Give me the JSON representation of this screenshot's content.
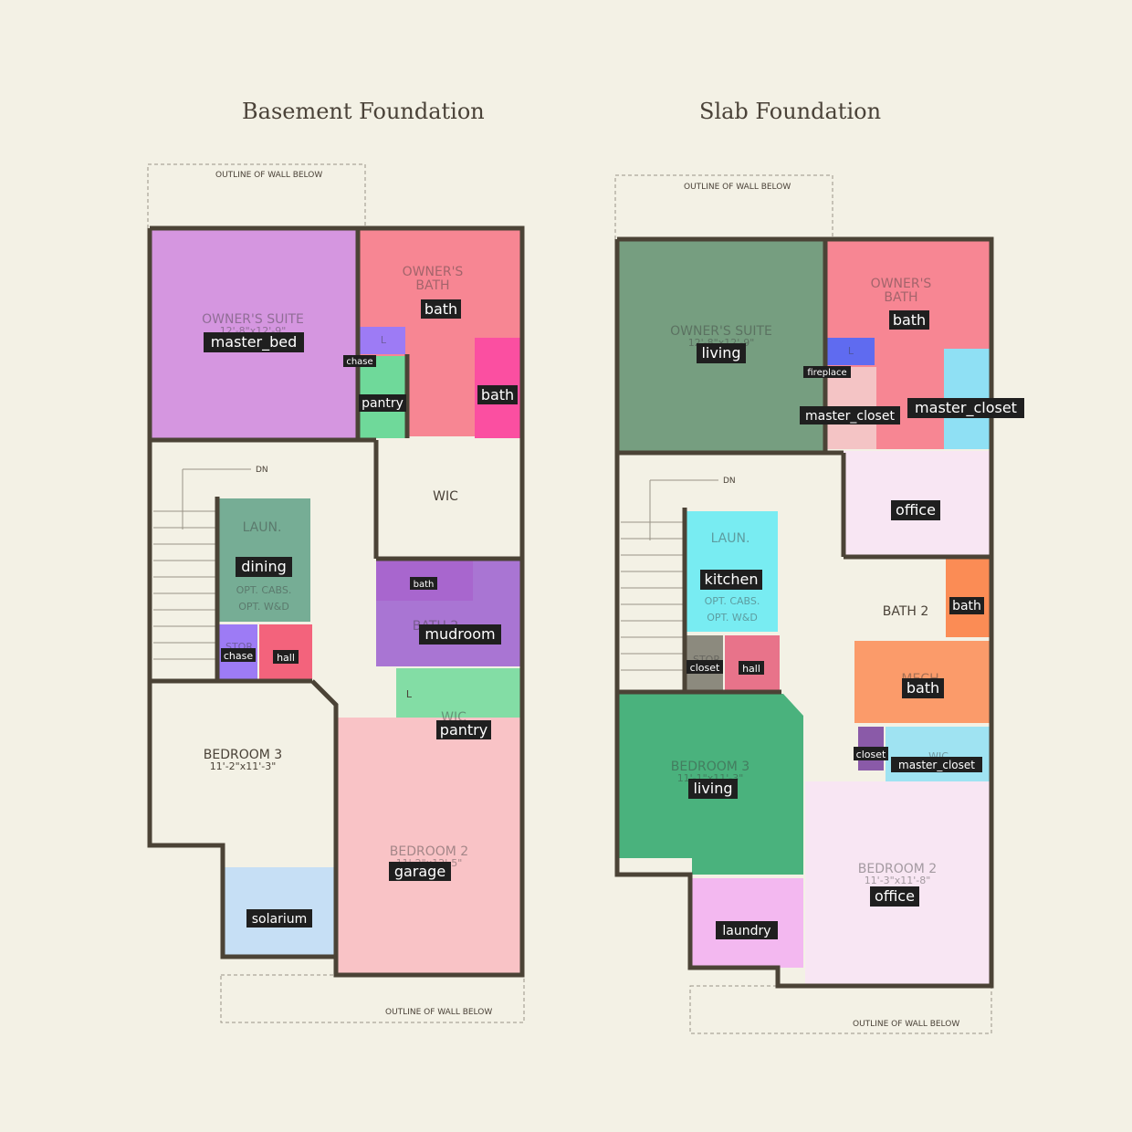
{
  "titles": {
    "left": "Basement Foundation",
    "right": "Slab Foundation"
  },
  "notes": {
    "outline_wall_below": "OUTLINE OF WALL BELOW",
    "dn": "DN",
    "l": "L"
  },
  "left_plan": {
    "printed_labels": {
      "owners_suite": "OWNER'S SUITE",
      "owners_suite_dim": "12'-8\"x12'-9\"",
      "owners_bath_1": "OWNER'S",
      "owners_bath_2": "BATH",
      "wic_top": "WIC",
      "laun": "LAUN.",
      "opt_cabs": "OPT. CABS.",
      "opt_wd": "OPT. W&D",
      "stor": "STOR",
      "bath2": "BATH 2",
      "wic_mid": "WIC",
      "bedroom3": "BEDROOM 3",
      "bedroom3_dim": "11'-2\"x11'-3\"",
      "bedroom2": "BEDROOM 2",
      "bedroom2_dim": "11'-2\"x12'-5\""
    },
    "tags": {
      "master_bed": "master_bed",
      "bath_owner": "bath",
      "chase_top": "chase",
      "pantry_top": "pantry",
      "bath_small": "bath",
      "dining": "dining",
      "bath_vanity": "bath",
      "mudroom": "mudroom",
      "chase_bottom": "chase",
      "hall": "hall",
      "pantry_wic": "pantry",
      "garage": "garage",
      "solarium": "solarium"
    }
  },
  "right_plan": {
    "printed_labels": {
      "owners_suite": "OWNER'S SUITE",
      "owners_suite_dim": "12'-8\"x12'-9\"",
      "owners_bath_1": "OWNER'S",
      "owners_bath_2": "BATH",
      "laun": "LAUN.",
      "opt_cabs": "OPT. CABS.",
      "opt_wd": "OPT. W&D",
      "stor": "STOR",
      "bath2": "BATH 2",
      "mech": "MECH",
      "wic": "WIC",
      "bedroom3": "BEDROOM 3",
      "bedroom3_dim": "11'-1\"x11'-3\"",
      "bedroom2": "BEDROOM 2",
      "bedroom2_dim": "11'-3\"x11'-8\""
    },
    "tags": {
      "living_suite": "living",
      "bath_owner": "bath",
      "fireplace": "fireplace",
      "master_closet_left": "master_closet",
      "master_closet_right": "master_closet",
      "office_top": "office",
      "kitchen": "kitchen",
      "bath_small": "bath",
      "bath_mech": "bath",
      "closet_stor": "closet",
      "hall": "hall",
      "closet_small": "closet",
      "master_closet_wic": "master_closet",
      "living_bed3": "living",
      "office_bed2": "office",
      "laundry": "laundry"
    }
  },
  "colors": {
    "wall": "#4b4336",
    "master_bed": "#d596e0",
    "bath_pink": "#f77a8a",
    "bath_magenta": "#fb4fa1",
    "chase": "#9d7bf5",
    "pantry": "#6fd99a",
    "dining": "#76ad95",
    "mudroom": "#9b5fd0",
    "garage": "#f9c3c6",
    "solarium": "#c6dff5",
    "living_dark": "#5f8f6e",
    "living_green": "#37ab71",
    "fireplace": "#5f6bf0",
    "master_closet_pink": "#f4c4c5",
    "master_closet_cyan": "#8fe0f4",
    "office": "#f8e6f3",
    "kitchen": "#78ecf2",
    "bath_orange": "#fb8c55",
    "closet_gray": "#8c8a7e",
    "closet_purple": "#8a5aa8",
    "laundry": "#f3b8f0"
  }
}
